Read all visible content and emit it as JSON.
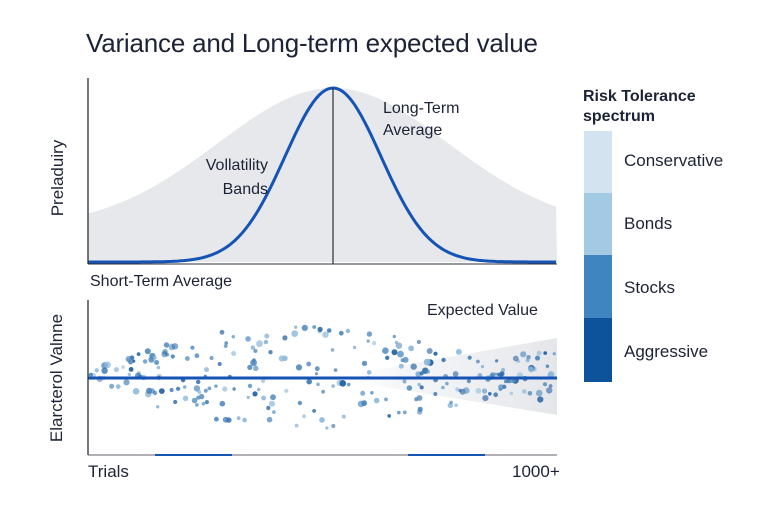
{
  "title": "Variance and Long-term expected value",
  "top_chart": {
    "ylabel": "Preladuiry",
    "annotation_volatility_line1": "Vollatility",
    "annotation_volatility_line2": "Bands",
    "annotation_longterm_line1": "Long-Term",
    "annotation_longterm_line2": "Average",
    "xlabel": "Short-Term Average"
  },
  "bottom_chart": {
    "ylabel": "Elarcterol Valnne",
    "annotation_expected": "Expected Value",
    "x_start_label": "Trials",
    "x_end_label": "1000+"
  },
  "legend": {
    "title_line1": "Risk Tolerance",
    "title_line2": "spectrum",
    "items": [
      {
        "label": "Conservative",
        "color": "#d3e4f0"
      },
      {
        "label": "Bonds",
        "color": "#a4c9e2"
      },
      {
        "label": "Stocks",
        "color": "#3f86c0"
      },
      {
        "label": "Aggressive",
        "color": "#0d539b"
      }
    ]
  },
  "colors": {
    "curve": "#1553b5",
    "band": "#e6e8ec",
    "axis": "#2a2f3a"
  }
}
